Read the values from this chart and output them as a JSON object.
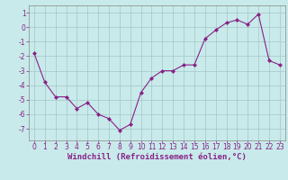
{
  "x": [
    0,
    1,
    2,
    3,
    4,
    5,
    6,
    7,
    8,
    9,
    10,
    11,
    12,
    13,
    14,
    15,
    16,
    17,
    18,
    19,
    20,
    21,
    22,
    23
  ],
  "y": [
    -1.8,
    -3.8,
    -4.8,
    -4.8,
    -5.6,
    -5.2,
    -6.0,
    -6.3,
    -7.1,
    -6.7,
    -4.5,
    -3.5,
    -3.0,
    -3.0,
    -2.6,
    -2.6,
    -0.8,
    -0.2,
    0.3,
    0.5,
    0.2,
    0.9,
    -2.3,
    -2.6
  ],
  "line_color": "#882288",
  "marker": "D",
  "marker_size": 2.0,
  "bg_color": "#c8eaea",
  "grid_color": "#aacccc",
  "xlabel": "Windchill (Refroidissement éolien,°C)",
  "xlabel_color": "#882288",
  "tick_color": "#882288",
  "ylim": [
    -7.8,
    1.5
  ],
  "xlim": [
    -0.5,
    23.5
  ],
  "yticks": [
    -7,
    -6,
    -5,
    -4,
    -3,
    -2,
    -1,
    0,
    1
  ],
  "xticks": [
    0,
    1,
    2,
    3,
    4,
    5,
    6,
    7,
    8,
    9,
    10,
    11,
    12,
    13,
    14,
    15,
    16,
    17,
    18,
    19,
    20,
    21,
    22,
    23
  ],
  "tick_fontsize": 5.5,
  "xlabel_fontsize": 6.5
}
